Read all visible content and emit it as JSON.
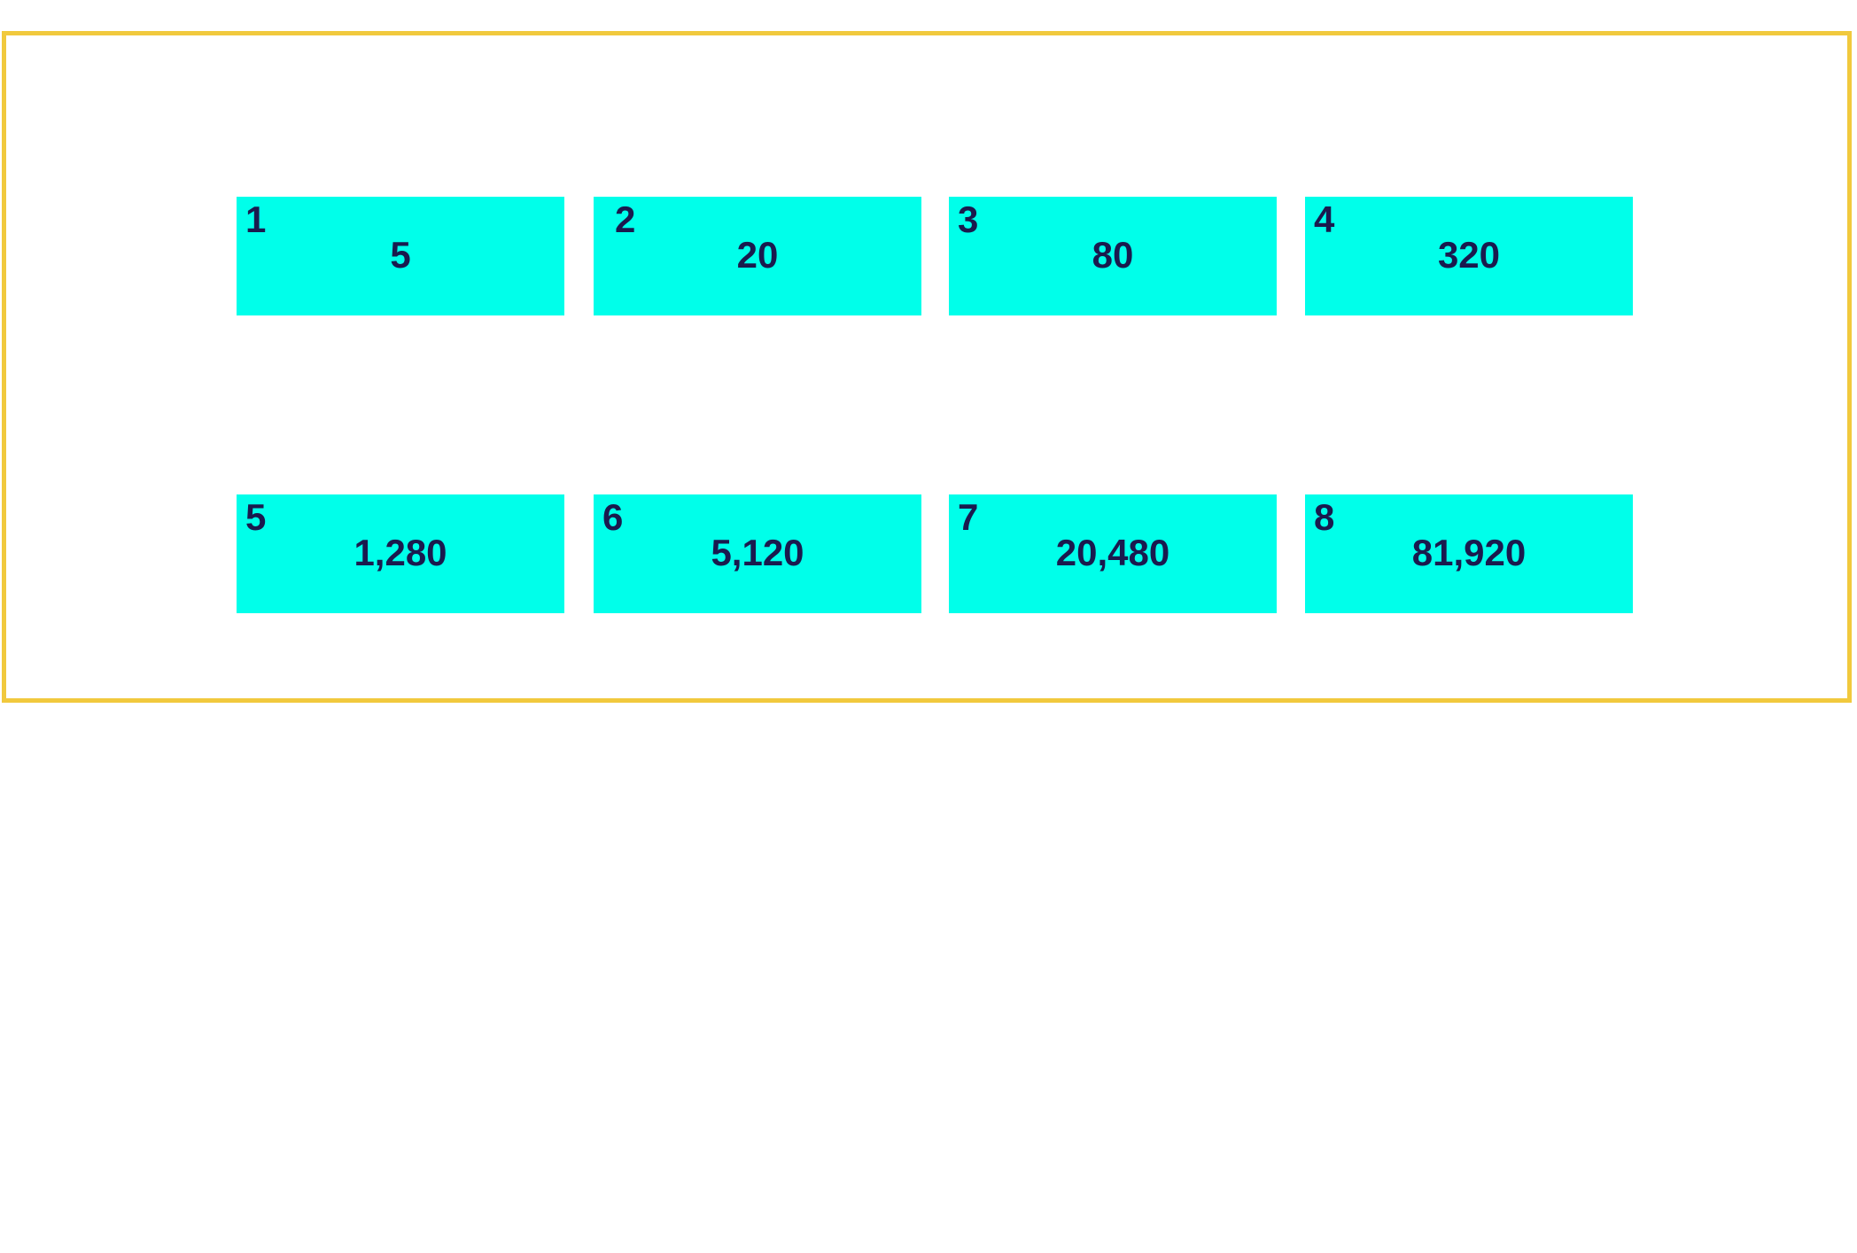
{
  "colors": {
    "frame_border": "#f1c93d",
    "cell_fill": "#00ffea",
    "text": "#1a1a4e",
    "background": "#ffffff"
  },
  "cells": [
    {
      "index": "1",
      "value": "5"
    },
    {
      "index": "2",
      "value": "20"
    },
    {
      "index": "3",
      "value": "80"
    },
    {
      "index": "4",
      "value": "320"
    },
    {
      "index": "5",
      "value": "1,280"
    },
    {
      "index": "6",
      "value": "5,120"
    },
    {
      "index": "7",
      "value": "20,480"
    },
    {
      "index": "8",
      "value": "81,920"
    }
  ]
}
